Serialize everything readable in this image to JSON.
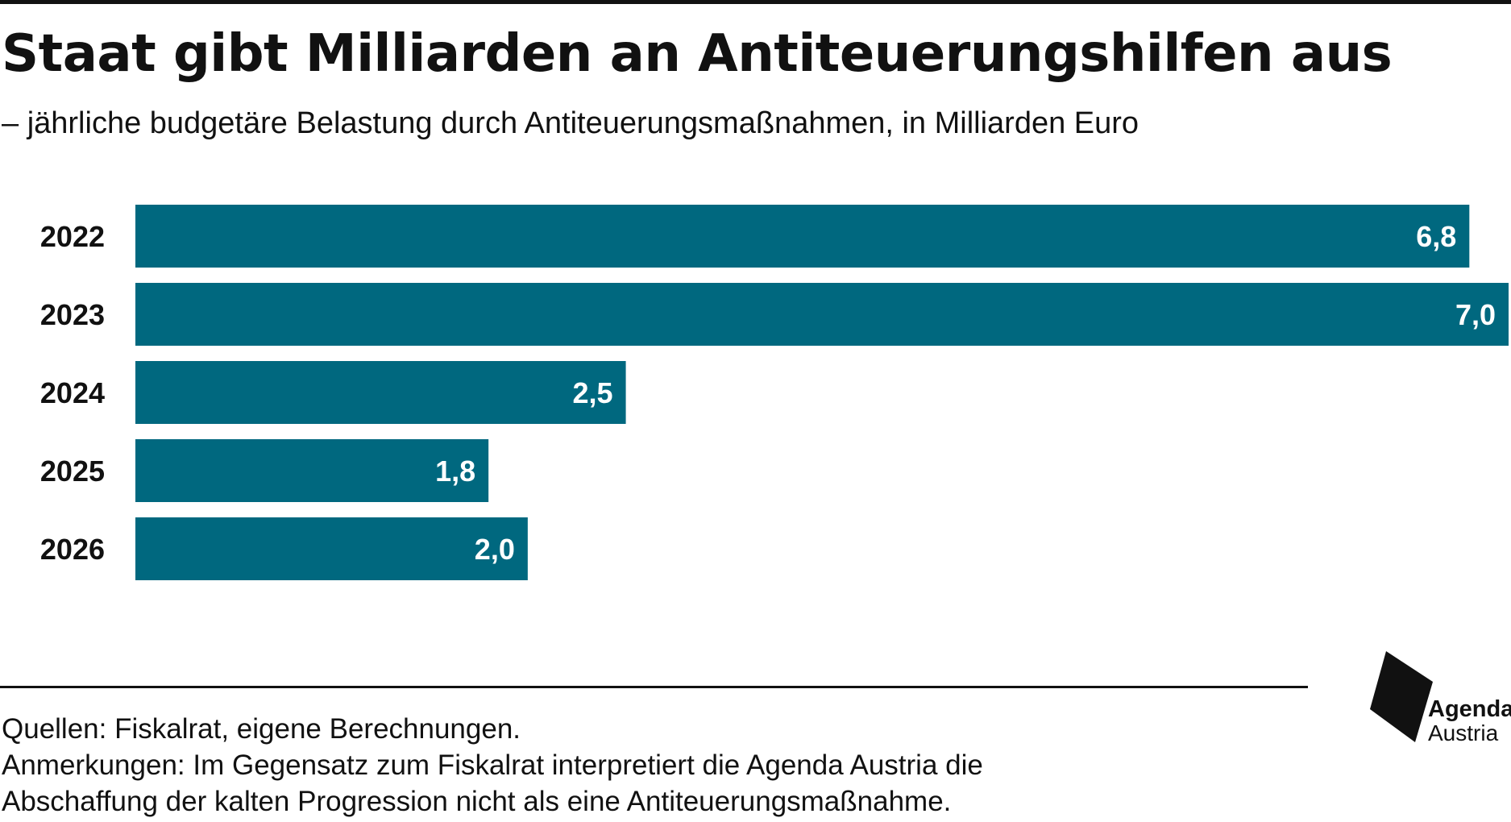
{
  "title": "Staat gibt Milliarden an Antiteuerungshilfen aus",
  "subtitle": "– jährliche budgetäre Belastung durch Antiteuerungsmaßnahmen, in Milliarden Euro",
  "footer": {
    "sources": "Quellen: Fiskalrat, eigene Berechnungen.",
    "notes_line1": "Anmerkungen: Im Gegensatz zum Fiskalrat interpretiert die Agenda Austria die",
    "notes_line2": "Abschaffung der kalten Progression nicht als eine Antiteuerungsmaßnahme."
  },
  "logo": {
    "line1": "Agenda",
    "line2": "Austria"
  },
  "colors": {
    "bar": "#00687F",
    "text": "#111111",
    "label_on_bar": "#ffffff"
  },
  "chart_data": {
    "type": "bar",
    "orientation": "horizontal",
    "title": "Staat gibt Milliarden an Antiteuerungshilfen aus",
    "subtitle": "– jährliche budgetäre Belastung durch Antiteuerungsmaßnahmen, in Milliarden Euro",
    "categories": [
      "2022",
      "2023",
      "2024",
      "2025",
      "2026"
    ],
    "values": [
      6.8,
      7.0,
      2.5,
      1.8,
      2.0
    ],
    "data_labels": [
      "6,8",
      "7,0",
      "2,5",
      "1,8",
      "2,0"
    ],
    "xlim": [
      0,
      7.0
    ],
    "grid": false,
    "legend": "none"
  }
}
